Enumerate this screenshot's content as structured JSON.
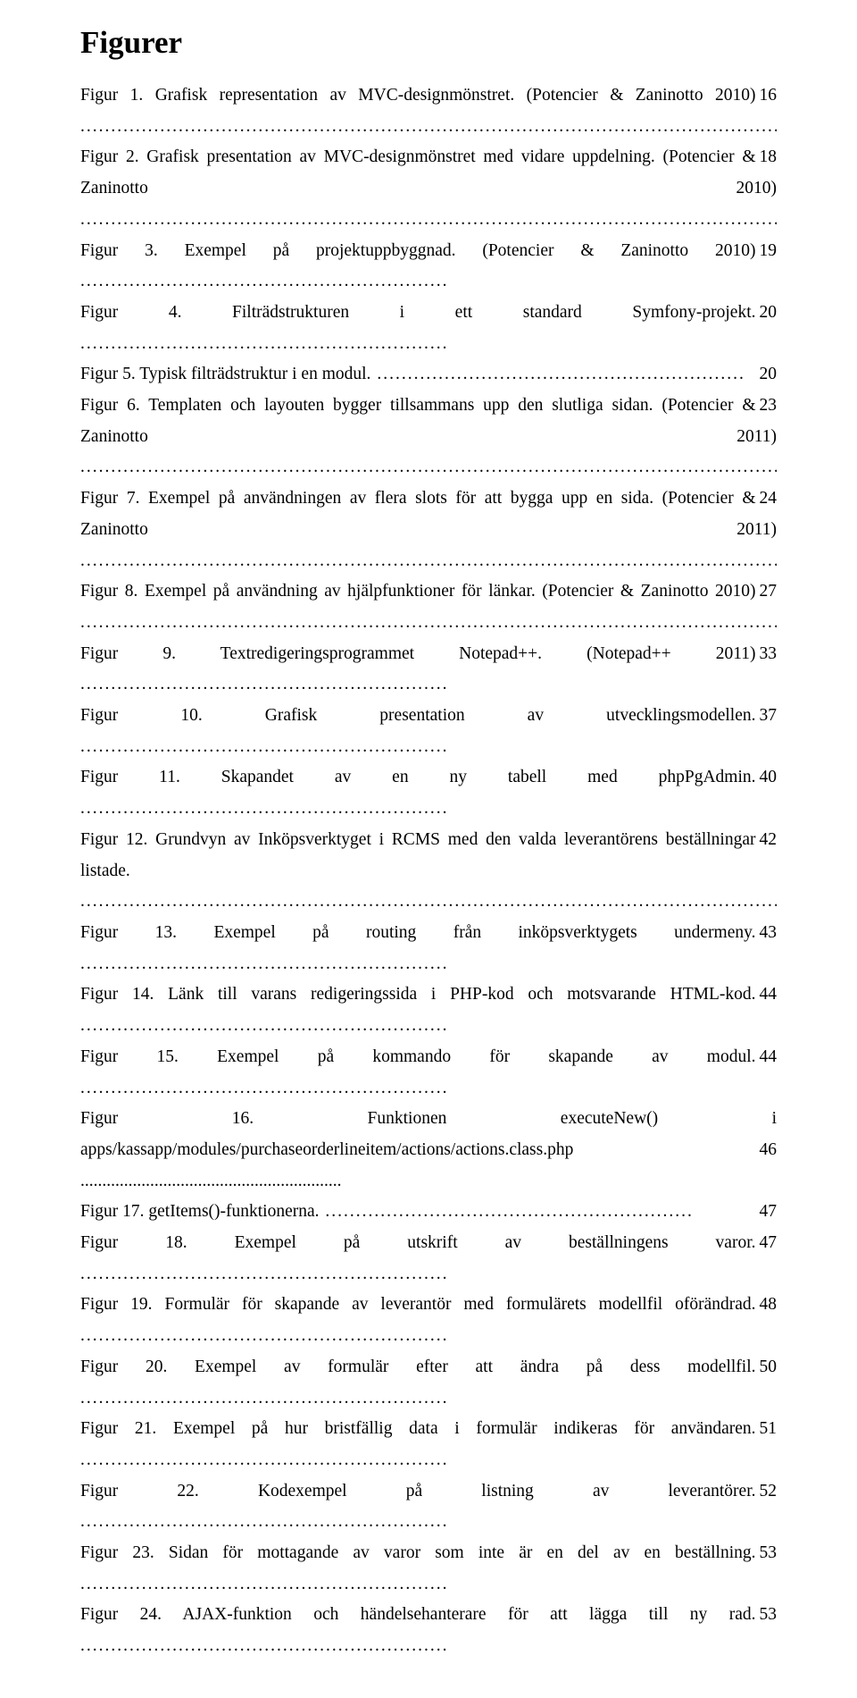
{
  "heading": "Figurer",
  "entries": [
    {
      "text": "Figur 1. Grafisk representation av MVC-designmönstret. (Potencier & Zaninotto 2010)",
      "page": "16",
      "multiline": true
    },
    {
      "text": "Figur 2. Grafisk presentation av MVC-designmönstret med vidare uppdelning. (Potencier & Zaninotto 2010)",
      "page": "18",
      "multiline": true
    },
    {
      "text": "Figur 3. Exempel på projektuppbyggnad. (Potencier & Zaninotto 2010)",
      "page": "19"
    },
    {
      "text": "Figur 4. Filträdstrukturen i ett standard Symfony-projekt. ",
      "page": "20"
    },
    {
      "text": "Figur 5. Typisk filträdstruktur i en modul.",
      "page": "20"
    },
    {
      "text": "Figur 6. Templaten och layouten bygger tillsammans upp den slutliga sidan. (Potencier & Zaninotto 2011)",
      "page": "23",
      "multiline": true
    },
    {
      "text": "Figur 7. Exempel på användningen av flera slots för att bygga upp en sida. (Potencier & Zaninotto 2011)",
      "page": "24",
      "multiline": true
    },
    {
      "text": "Figur 8. Exempel på användning av hjälpfunktioner för länkar. (Potencier & Zaninotto 2010)",
      "page": "27",
      "multiline": true
    },
    {
      "text": "Figur 9. Textredigeringsprogrammet Notepad++. (Notepad++ 2011)",
      "page": "33"
    },
    {
      "text": "Figur 10. Grafisk presentation av utvecklingsmodellen. ",
      "page": "37"
    },
    {
      "text": "Figur 11. Skapandet av en ny tabell med phpPgAdmin.",
      "page": "40"
    },
    {
      "text": "Figur 12. Grundvyn av Inköpsverktyget i RCMS med den valda leverantörens beställningar listade. ",
      "page": "42",
      "multiline": true
    },
    {
      "text": "Figur 13. Exempel på routing från inköpsverktygets undermeny. ",
      "page": "43"
    },
    {
      "text": "Figur 14. Länk till varans redigeringssida i PHP-kod och motsvarande HTML-kod.",
      "page": "44"
    },
    {
      "text": "Figur 15. Exempel på kommando för skapande av modul.",
      "page": "44"
    },
    {
      "text": "Figur 16. Funktionen executeNew() i apps/kassapp/modules/purchaseorderlineitem/actions/actions.class.php",
      "page": "46",
      "multiline": true,
      "spread": true
    },
    {
      "text": "Figur 17. getItems()-funktionerna.",
      "page": "47"
    },
    {
      "text": "Figur 18. Exempel på utskrift av beställningens varor. ",
      "page": "47"
    },
    {
      "text": "Figur 19. Formulär för skapande av leverantör med formulärets modellfil oförändrad.",
      "page": "48"
    },
    {
      "text": "Figur 20. Exempel av formulär efter att ändra på dess modellfil. ",
      "page": "50"
    },
    {
      "text": "Figur 21. Exempel på hur bristfällig data i formulär indikeras för användaren.",
      "page": "51"
    },
    {
      "text": "Figur 22. Kodexempel på listning av leverantörer. ",
      "page": "52"
    },
    {
      "text": "Figur 23. Sidan för mottagande av varor som inte är en del av en beställning. ",
      "page": "53"
    },
    {
      "text": "Figur 24. AJAX-funktion och händelsehanterare för att lägga till ny rad. ",
      "page": "53"
    }
  ]
}
